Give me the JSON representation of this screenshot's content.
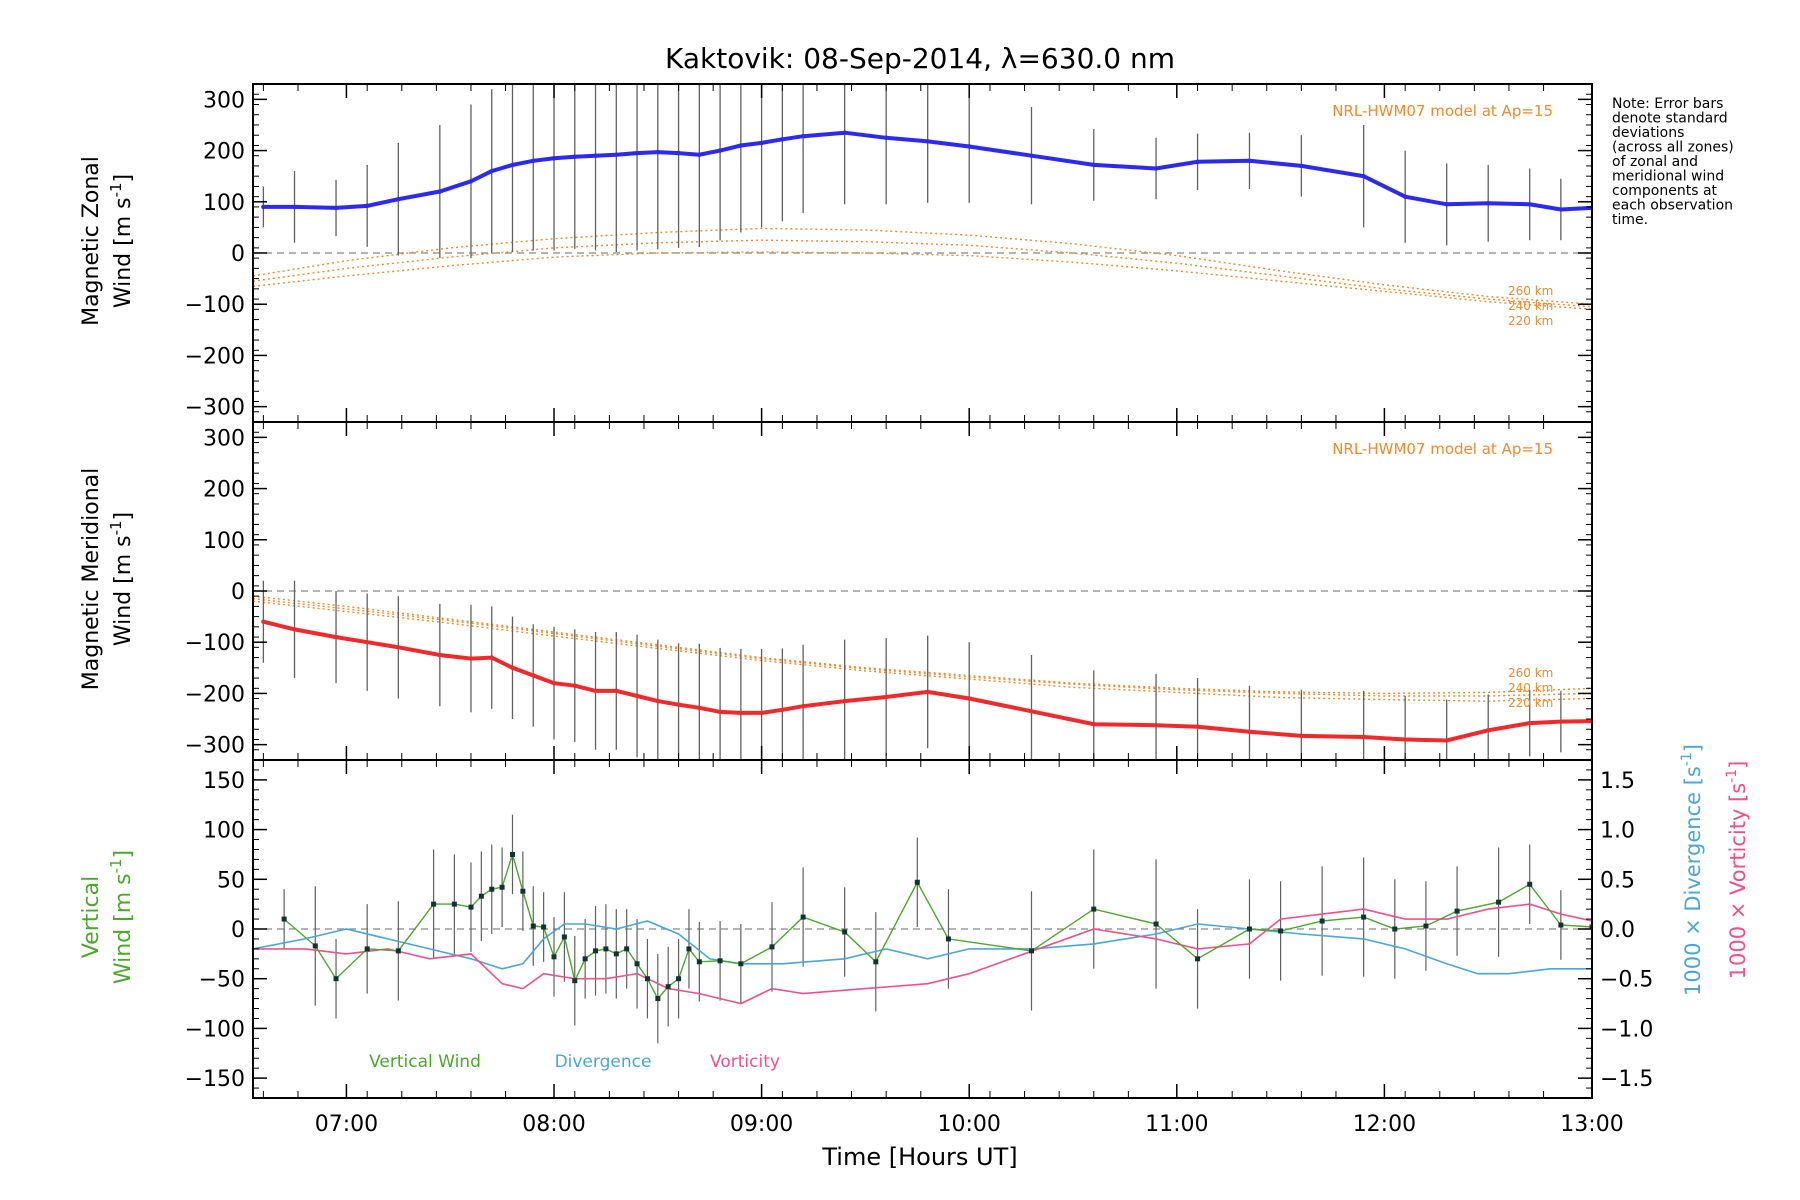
{
  "title": "Kaktovik: 08-Sep-2014, λ=630.0 nm",
  "note": [
    "Note: Error bars",
    "denote standard",
    "deviations",
    "(across all zones)",
    "of zonal and",
    "meridional wind",
    "components at",
    "each observation",
    "time."
  ],
  "x_axis": {
    "label": "Time [Hours UT]",
    "range": [
      6.55,
      13.0
    ],
    "ticks": [
      7,
      8,
      9,
      10,
      11,
      12,
      13
    ],
    "tick_labels": [
      "07:00",
      "08:00",
      "09:00",
      "10:00",
      "11:00",
      "12:00",
      "13:00"
    ]
  },
  "colors": {
    "zonal": "#2a2af0",
    "meridional": "#f02a2a",
    "vertical": "#4aa82a",
    "divergence": "#4aa6d8",
    "vorticity": "#f0508a",
    "model": "#f08a2a",
    "errorbar": "#606060",
    "zero_line": "#888888"
  },
  "chart_data": [
    {
      "type": "line",
      "panel": "zonal",
      "ylabel_line1": "Magnetic Zonal",
      "ylabel_line2": "Wind [m s",
      "ylabel_sup": "-1",
      "ylabel_close": "]",
      "ylim": [
        -330,
        330
      ],
      "yticks": [
        -300,
        -200,
        -100,
        0,
        100,
        200,
        300
      ],
      "model_label": "NRL-HWM07 model at Ap=15",
      "x": [
        6.6,
        6.75,
        6.95,
        7.1,
        7.25,
        7.45,
        7.6,
        7.7,
        7.8,
        7.9,
        8.0,
        8.1,
        8.2,
        8.3,
        8.4,
        8.5,
        8.6,
        8.7,
        8.8,
        8.9,
        9.0,
        9.1,
        9.2,
        9.4,
        9.6,
        9.8,
        10.0,
        10.3,
        10.6,
        10.9,
        11.1,
        11.35,
        11.6,
        11.9,
        12.1,
        12.3,
        12.5,
        12.7,
        12.85,
        13.0
      ],
      "series": [
        {
          "name": "zonal",
          "values": [
            90,
            90,
            88,
            92,
            105,
            120,
            140,
            160,
            172,
            180,
            185,
            188,
            190,
            192,
            195,
            197,
            195,
            192,
            200,
            210,
            215,
            222,
            228,
            235,
            225,
            218,
            208,
            190,
            172,
            165,
            178,
            180,
            170,
            150,
            110,
            95,
            97,
            95,
            85,
            88
          ]
        }
      ],
      "error": [
        40,
        70,
        55,
        80,
        110,
        130,
        150,
        160,
        170,
        175,
        180,
        180,
        185,
        190,
        190,
        190,
        185,
        180,
        175,
        170,
        165,
        160,
        150,
        140,
        130,
        120,
        110,
        95,
        70,
        60,
        55,
        55,
        60,
        100,
        90,
        80,
        75,
        70,
        60,
        50
      ],
      "model": {
        "x": [
          6.55,
          7.0,
          7.5,
          8.0,
          8.5,
          9.0,
          9.5,
          10.0,
          10.5,
          11.0,
          11.5,
          12.0,
          12.5,
          13.0
        ],
        "series": [
          {
            "name": "220 km",
            "values": [
              -65,
              -45,
              -25,
              -8,
              0,
              2,
              0,
              -5,
              -18,
              -35,
              -55,
              -75,
              -95,
              -110
            ]
          },
          {
            "name": "240 km",
            "values": [
              -55,
              -30,
              -8,
              10,
              20,
              25,
              22,
              15,
              0,
              -20,
              -45,
              -70,
              -90,
              -105
            ]
          },
          {
            "name": "260 km",
            "values": [
              -45,
              -15,
              10,
              28,
              40,
              48,
              45,
              35,
              18,
              -5,
              -35,
              -62,
              -85,
              -100
            ]
          }
        ]
      }
    },
    {
      "type": "line",
      "panel": "meridional",
      "ylabel_line1": "Magnetic Meridional",
      "ylabel_line2": "Wind [m s",
      "ylabel_sup": "-1",
      "ylabel_close": "]",
      "ylim": [
        -330,
        330
      ],
      "yticks": [
        -300,
        -200,
        -100,
        0,
        100,
        200,
        300
      ],
      "model_label": "NRL-HWM07 model at Ap=15",
      "x": [
        6.6,
        6.75,
        6.95,
        7.1,
        7.25,
        7.45,
        7.6,
        7.7,
        7.8,
        7.9,
        8.0,
        8.1,
        8.2,
        8.3,
        8.4,
        8.5,
        8.6,
        8.7,
        8.8,
        8.9,
        9.0,
        9.1,
        9.2,
        9.4,
        9.6,
        9.8,
        10.0,
        10.3,
        10.6,
        10.9,
        11.1,
        11.35,
        11.6,
        11.9,
        12.1,
        12.3,
        12.5,
        12.7,
        12.85,
        13.0
      ],
      "series": [
        {
          "name": "meridional",
          "values": [
            -60,
            -75,
            -90,
            -100,
            -110,
            -125,
            -132,
            -130,
            -150,
            -165,
            -180,
            -185,
            -195,
            -195,
            -205,
            -215,
            -222,
            -228,
            -236,
            -238,
            -238,
            -232,
            -225,
            -215,
            -207,
            -197,
            -210,
            -235,
            -260,
            -262,
            -265,
            -275,
            -283,
            -285,
            -290,
            -292,
            -272,
            -258,
            -255,
            -254
          ]
        }
      ],
      "error": [
        80,
        95,
        90,
        95,
        100,
        100,
        105,
        100,
        100,
        100,
        110,
        110,
        115,
        115,
        120,
        120,
        120,
        125,
        125,
        125,
        125,
        120,
        120,
        120,
        115,
        110,
        110,
        110,
        105,
        100,
        95,
        90,
        90,
        90,
        85,
        80,
        70,
        65,
        60,
        55
      ],
      "model": {
        "x": [
          6.55,
          7.0,
          7.5,
          8.0,
          8.5,
          9.0,
          9.5,
          10.0,
          10.5,
          11.0,
          11.5,
          12.0,
          12.5,
          13.0
        ],
        "series": [
          {
            "name": "220 km",
            "values": [
              -10,
              -30,
              -55,
              -80,
              -105,
              -130,
              -150,
              -165,
              -180,
              -190,
              -197,
              -200,
              -198,
              -190
            ]
          },
          {
            "name": "240 km",
            "values": [
              -15,
              -35,
              -58,
              -83,
              -108,
              -132,
              -152,
              -168,
              -182,
              -193,
              -200,
              -205,
              -205,
              -200
            ]
          },
          {
            "name": "260 km",
            "values": [
              -20,
              -40,
              -63,
              -88,
              -112,
              -136,
              -156,
              -172,
              -188,
              -198,
              -208,
              -212,
              -215,
              -210
            ]
          }
        ]
      }
    },
    {
      "type": "line",
      "panel": "vertical",
      "ylabel_line1": "Vertical",
      "ylabel_line2": "Wind [m s",
      "ylabel_sup": "-1",
      "ylabel_close": "]",
      "ylim": [
        -170,
        170
      ],
      "yticks": [
        -150,
        -100,
        -50,
        0,
        50,
        100,
        150
      ],
      "y2_ticks": [
        -1.5,
        -1.0,
        -0.5,
        0.0,
        0.5,
        1.0,
        1.5
      ],
      "y2_tick_labels": [
        "-1.5",
        "-1.0",
        "-0.5",
        "0.0",
        "0.5",
        "1.0",
        "1.5"
      ],
      "y2lim": [
        -1.7,
        1.7
      ],
      "y2_label_div_text": "1000 × Divergence [s",
      "y2_label_div_sup": "-1",
      "y2_label_vor_text": "1000 × Vorticity [s",
      "y2_label_vor_sup": "-1",
      "y2_label_close": "]",
      "legend": [
        "Vertical Wind",
        "Divergence",
        "Vorticity"
      ],
      "vertical_wind": {
        "x": [
          6.7,
          6.85,
          6.95,
          7.1,
          7.25,
          7.42,
          7.52,
          7.6,
          7.65,
          7.7,
          7.75,
          7.8,
          7.85,
          7.9,
          7.95,
          8.0,
          8.05,
          8.1,
          8.15,
          8.2,
          8.25,
          8.3,
          8.35,
          8.4,
          8.45,
          8.5,
          8.55,
          8.6,
          8.65,
          8.7,
          8.8,
          8.9,
          9.05,
          9.2,
          9.4,
          9.55,
          9.75,
          9.9,
          10.3,
          10.6,
          10.9,
          11.1,
          11.35,
          11.5,
          11.7,
          11.9,
          12.05,
          12.2,
          12.35,
          12.55,
          12.7,
          12.85,
          13.0
        ],
        "values": [
          10,
          -17,
          -50,
          -20,
          -22,
          25,
          25,
          22,
          33,
          40,
          42,
          75,
          38,
          3,
          2,
          -28,
          -8,
          -52,
          -30,
          -22,
          -20,
          -25,
          -20,
          -35,
          -50,
          -70,
          -58,
          -50,
          -20,
          -33,
          -32,
          -35,
          -18,
          12,
          -3,
          -33,
          47,
          -10,
          -22,
          20,
          5,
          -30,
          0,
          -2,
          8,
          12,
          0,
          3,
          18,
          27,
          45,
          4,
          2
        ],
        "error": [
          30,
          60,
          40,
          45,
          50,
          55,
          50,
          45,
          45,
          45,
          40,
          40,
          40,
          40,
          35,
          40,
          45,
          45,
          40,
          45,
          45,
          45,
          40,
          45,
          40,
          45,
          40,
          40,
          40,
          40,
          40,
          40,
          45,
          50,
          45,
          50,
          45,
          50,
          60,
          60,
          65,
          50,
          50,
          50,
          55,
          60,
          50,
          45,
          45,
          55,
          40,
          35,
          30
        ]
      },
      "divergence": {
        "x": [
          6.55,
          6.8,
          7.0,
          7.2,
          7.4,
          7.6,
          7.75,
          7.85,
          7.95,
          8.05,
          8.15,
          8.3,
          8.45,
          8.6,
          8.75,
          8.9,
          9.1,
          9.4,
          9.6,
          9.8,
          10.0,
          10.3,
          10.6,
          10.9,
          11.1,
          11.35,
          11.6,
          11.9,
          12.1,
          12.3,
          12.45,
          12.6,
          12.8,
          13.0
        ],
        "values": [
          -0.2,
          -0.1,
          0.0,
          -0.1,
          -0.2,
          -0.3,
          -0.4,
          -0.35,
          -0.1,
          0.05,
          0.05,
          0.0,
          0.08,
          -0.05,
          -0.3,
          -0.35,
          -0.35,
          -0.3,
          -0.2,
          -0.3,
          -0.2,
          -0.2,
          -0.15,
          -0.05,
          0.05,
          0.0,
          -0.05,
          -0.1,
          -0.2,
          -0.35,
          -0.45,
          -0.45,
          -0.4,
          -0.4
        ]
      },
      "vorticity": {
        "x": [
          6.55,
          6.8,
          7.0,
          7.2,
          7.4,
          7.6,
          7.75,
          7.85,
          7.95,
          8.1,
          8.25,
          8.4,
          8.55,
          8.7,
          8.9,
          9.05,
          9.2,
          9.5,
          9.8,
          10.0,
          10.2,
          10.6,
          10.9,
          11.1,
          11.35,
          11.5,
          11.7,
          11.9,
          12.1,
          12.3,
          12.5,
          12.7,
          12.85,
          13.0
        ],
        "values": [
          -0.2,
          -0.2,
          -0.25,
          -0.2,
          -0.3,
          -0.25,
          -0.55,
          -0.6,
          -0.45,
          -0.5,
          -0.5,
          -0.45,
          -0.6,
          -0.65,
          -0.75,
          -0.6,
          -0.65,
          -0.6,
          -0.55,
          -0.45,
          -0.3,
          0.0,
          -0.1,
          -0.2,
          -0.15,
          0.1,
          0.15,
          0.2,
          0.1,
          0.1,
          0.2,
          0.25,
          0.15,
          0.08
        ]
      }
    }
  ]
}
